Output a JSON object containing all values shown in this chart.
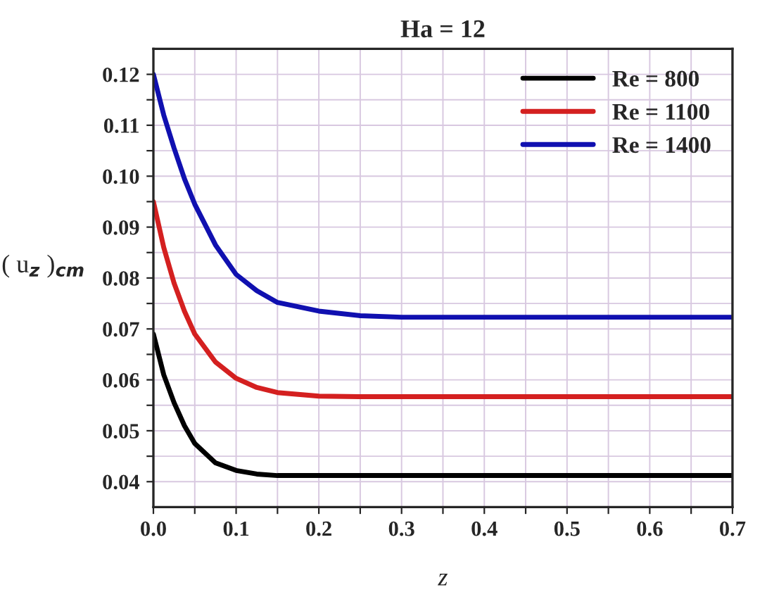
{
  "chart_data": {
    "type": "line",
    "title": "Ha = 12",
    "xlabel": "z",
    "ylabel": "( u$_{z}$ )$_{cm}$",
    "xlim": [
      0,
      0.7
    ],
    "ylim": [
      0.035,
      0.125
    ],
    "xticks": [
      {
        "value": 0,
        "label": "0.0"
      },
      {
        "value": 0.05,
        "label": null
      },
      0.1,
      {
        "value": 0.15,
        "label": null
      },
      0.2,
      {
        "value": 0.25,
        "label": null
      },
      0.3,
      {
        "value": 0.35,
        "label": null
      },
      0.4,
      {
        "value": 0.45,
        "label": null
      },
      0.5,
      {
        "value": 0.55,
        "label": null
      },
      0.6,
      {
        "value": 0.65,
        "label": null
      },
      0.7
    ],
    "yticks": [
      {
        "value": 0.04,
        "label": "0.04"
      },
      {
        "value": 0.045,
        "label": null
      },
      {
        "value": 0.05,
        "label": "0.05"
      },
      {
        "value": 0.055,
        "label": null
      },
      {
        "value": 0.06,
        "label": "0.06"
      },
      {
        "value": 0.065,
        "label": null
      },
      {
        "value": 0.07,
        "label": "0.07"
      },
      {
        "value": 0.075,
        "label": null
      },
      {
        "value": 0.08,
        "label": "0.08"
      },
      {
        "value": 0.085,
        "label": null
      },
      {
        "value": 0.09,
        "label": "0.09"
      },
      {
        "value": 0.095,
        "label": null
      },
      {
        "value": 0.1,
        "label": "0.10"
      },
      {
        "value": 0.105,
        "label": null
      },
      {
        "value": 0.11,
        "label": "0.11"
      },
      {
        "value": 0.115,
        "label": null
      },
      {
        "value": 0.12,
        "label": "0.12"
      }
    ],
    "grid": true,
    "legend": "top right",
    "marker": "none",
    "line_style": "solid",
    "x": [
      0,
      0.0125,
      0.025,
      0.0375,
      0.05,
      0.075,
      0.1,
      0.125,
      0.15,
      0.2,
      0.25,
      0.3,
      0.4,
      0.5,
      0.6,
      0.7
    ],
    "series": [
      {
        "name": "Re = 800",
        "color": "#000000",
        "values": [
          0.069,
          0.061,
          0.0555,
          0.051,
          0.0475,
          0.0437,
          0.0422,
          0.0415,
          0.0412,
          0.0412,
          0.0412,
          0.0412,
          0.0412,
          0.0412,
          0.0412,
          0.0412
        ]
      },
      {
        "name": "Re = 1100",
        "color": "#d42020",
        "values": [
          0.095,
          0.086,
          0.079,
          0.0735,
          0.069,
          0.0635,
          0.0603,
          0.0585,
          0.0575,
          0.0568,
          0.0567,
          0.0567,
          0.0567,
          0.0567,
          0.0567,
          0.0567
        ]
      },
      {
        "name": "Re = 1400",
        "color": "#1010b0",
        "values": [
          0.12,
          0.112,
          0.1055,
          0.0995,
          0.0945,
          0.0865,
          0.0807,
          0.0775,
          0.0752,
          0.0735,
          0.0726,
          0.0723,
          0.0723,
          0.0723,
          0.0723,
          0.0723
        ]
      }
    ]
  }
}
